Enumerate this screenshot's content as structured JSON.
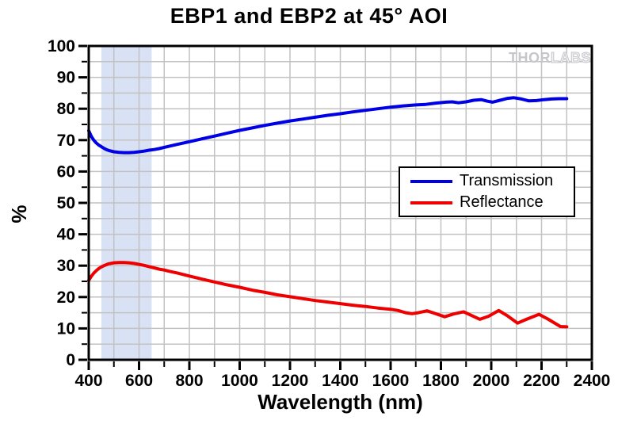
{
  "chart_data": {
    "type": "line",
    "title": "EBP1 and EBP2 at 45° AOI",
    "xlabel": "Wavelength (nm)",
    "ylabel": "%",
    "xlim": [
      400,
      2400
    ],
    "ylim": [
      0,
      100
    ],
    "x_ticks": [
      400,
      600,
      800,
      1000,
      1200,
      1400,
      1600,
      1800,
      2000,
      2200,
      2400
    ],
    "y_ticks": [
      0,
      10,
      20,
      30,
      40,
      50,
      60,
      70,
      80,
      90,
      100
    ],
    "x_minor_step": 100,
    "y_minor_step": 5,
    "grid": true,
    "grid_color": "#c2c2c2",
    "frame_color": "#000000",
    "legend_position": "middle-right",
    "band": {
      "from": 450,
      "to": 650,
      "color": "#d9e1f4"
    },
    "series": [
      {
        "name": "Transmission",
        "color": "#0000e6",
        "points": [
          [
            400,
            73.0
          ],
          [
            410,
            71.2
          ],
          [
            420,
            70.0
          ],
          [
            430,
            69.1
          ],
          [
            440,
            68.4
          ],
          [
            450,
            67.9
          ],
          [
            460,
            67.4
          ],
          [
            470,
            67.0
          ],
          [
            480,
            66.7
          ],
          [
            500,
            66.3
          ],
          [
            520,
            66.1
          ],
          [
            540,
            66.0
          ],
          [
            560,
            66.0
          ],
          [
            580,
            66.1
          ],
          [
            600,
            66.3
          ],
          [
            620,
            66.5
          ],
          [
            640,
            66.8
          ],
          [
            660,
            67.0
          ],
          [
            680,
            67.3
          ],
          [
            700,
            67.7
          ],
          [
            750,
            68.6
          ],
          [
            800,
            69.5
          ],
          [
            850,
            70.4
          ],
          [
            900,
            71.3
          ],
          [
            950,
            72.2
          ],
          [
            1000,
            73.1
          ],
          [
            1050,
            73.9
          ],
          [
            1100,
            74.7
          ],
          [
            1150,
            75.4
          ],
          [
            1200,
            76.1
          ],
          [
            1250,
            76.7
          ],
          [
            1300,
            77.3
          ],
          [
            1350,
            77.9
          ],
          [
            1400,
            78.4
          ],
          [
            1450,
            79.0
          ],
          [
            1500,
            79.5
          ],
          [
            1550,
            80.0
          ],
          [
            1600,
            80.5
          ],
          [
            1650,
            80.9
          ],
          [
            1700,
            81.2
          ],
          [
            1740,
            81.4
          ],
          [
            1780,
            81.8
          ],
          [
            1820,
            82.1
          ],
          [
            1845,
            82.2
          ],
          [
            1870,
            81.9
          ],
          [
            1900,
            82.2
          ],
          [
            1930,
            82.7
          ],
          [
            1960,
            82.9
          ],
          [
            1985,
            82.4
          ],
          [
            2005,
            82.1
          ],
          [
            2035,
            82.7
          ],
          [
            2065,
            83.3
          ],
          [
            2090,
            83.5
          ],
          [
            2120,
            83.1
          ],
          [
            2150,
            82.5
          ],
          [
            2180,
            82.6
          ],
          [
            2210,
            82.9
          ],
          [
            2240,
            83.1
          ],
          [
            2270,
            83.2
          ],
          [
            2300,
            83.2
          ]
        ]
      },
      {
        "name": "Reflectance",
        "color": "#ee0000",
        "points": [
          [
            400,
            25.3
          ],
          [
            410,
            26.6
          ],
          [
            420,
            27.6
          ],
          [
            430,
            28.4
          ],
          [
            440,
            29.1
          ],
          [
            450,
            29.6
          ],
          [
            460,
            30.0
          ],
          [
            480,
            30.6
          ],
          [
            500,
            30.9
          ],
          [
            520,
            31.0
          ],
          [
            540,
            31.0
          ],
          [
            560,
            30.9
          ],
          [
            580,
            30.7
          ],
          [
            600,
            30.4
          ],
          [
            620,
            30.1
          ],
          [
            640,
            29.7
          ],
          [
            660,
            29.3
          ],
          [
            680,
            28.9
          ],
          [
            700,
            28.6
          ],
          [
            720,
            28.2
          ],
          [
            750,
            27.7
          ],
          [
            800,
            26.7
          ],
          [
            850,
            25.7
          ],
          [
            900,
            24.8
          ],
          [
            950,
            23.9
          ],
          [
            1000,
            23.1
          ],
          [
            1050,
            22.2
          ],
          [
            1100,
            21.5
          ],
          [
            1150,
            20.7
          ],
          [
            1200,
            20.1
          ],
          [
            1250,
            19.5
          ],
          [
            1300,
            18.9
          ],
          [
            1350,
            18.4
          ],
          [
            1400,
            17.9
          ],
          [
            1450,
            17.4
          ],
          [
            1500,
            17.0
          ],
          [
            1550,
            16.5
          ],
          [
            1600,
            16.1
          ],
          [
            1630,
            15.7
          ],
          [
            1660,
            15.0
          ],
          [
            1685,
            14.7
          ],
          [
            1710,
            15.0
          ],
          [
            1745,
            15.6
          ],
          [
            1775,
            14.8
          ],
          [
            1815,
            13.7
          ],
          [
            1850,
            14.6
          ],
          [
            1890,
            15.3
          ],
          [
            1920,
            14.2
          ],
          [
            1955,
            12.9
          ],
          [
            1990,
            13.9
          ],
          [
            2030,
            15.7
          ],
          [
            2065,
            14.0
          ],
          [
            2105,
            11.7
          ],
          [
            2140,
            12.9
          ],
          [
            2190,
            14.5
          ],
          [
            2225,
            13.0
          ],
          [
            2275,
            10.6
          ],
          [
            2300,
            10.5
          ]
        ]
      }
    ]
  },
  "watermark": {
    "part1": "THOR",
    "part2": "LABS"
  }
}
